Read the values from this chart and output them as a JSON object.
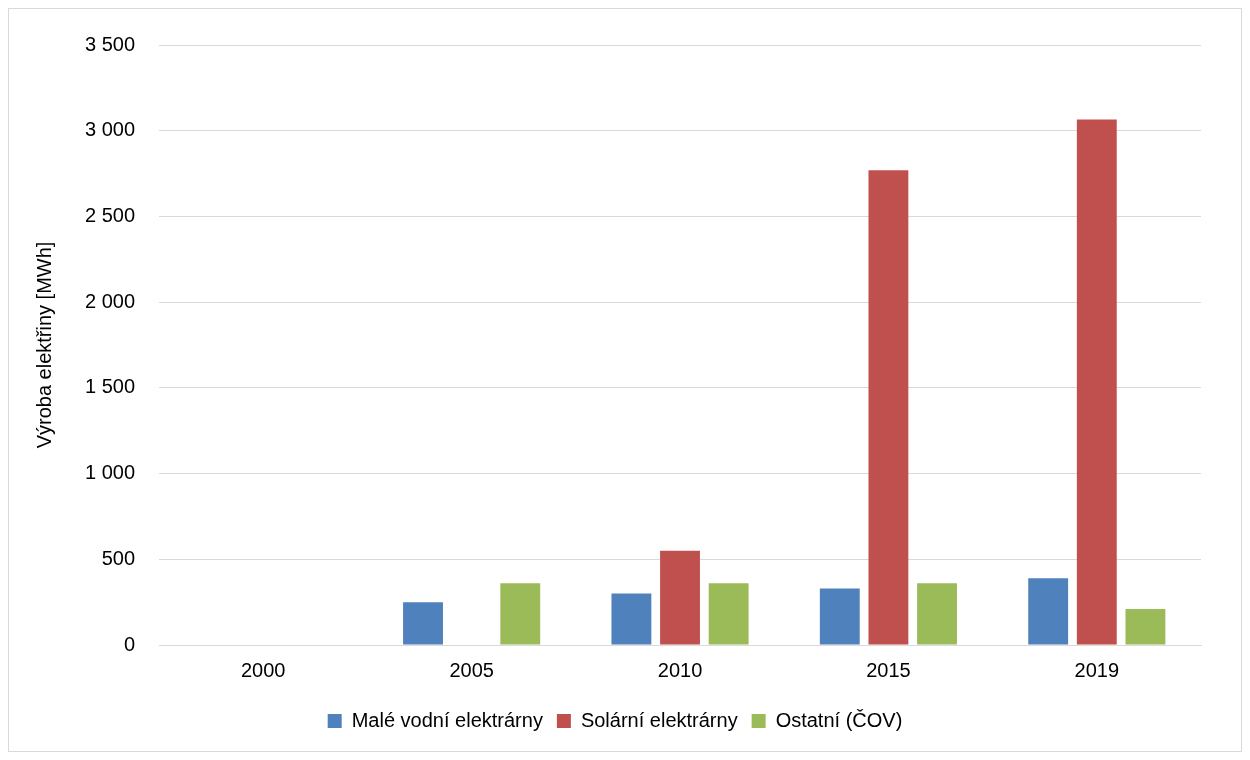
{
  "chart_data": {
    "type": "bar",
    "ylabel": "Výroba elektřiny [MWh]",
    "categories": [
      "2000",
      "2005",
      "2010",
      "2015",
      "2019"
    ],
    "series": [
      {
        "name": "Malé vodní elektrárny",
        "color": "#4f81bd",
        "values": [
          0,
          250,
          300,
          330,
          390
        ]
      },
      {
        "name": "Solární elektrárny",
        "color": "#c0504d",
        "values": [
          0,
          0,
          550,
          2770,
          3065
        ]
      },
      {
        "name": "Ostatní (ČOV)",
        "color": "#9bbb59",
        "values": [
          0,
          360,
          360,
          360,
          210
        ]
      }
    ],
    "ylim": [
      0,
      3500
    ],
    "yticks": [
      {
        "value": 0,
        "label": "0"
      },
      {
        "value": 500,
        "label": "500"
      },
      {
        "value": 1000,
        "label": "1 000"
      },
      {
        "value": 1500,
        "label": "1 500"
      },
      {
        "value": 2000,
        "label": "2 000"
      },
      {
        "value": 2500,
        "label": "2 500"
      },
      {
        "value": 3000,
        "label": "3 000"
      },
      {
        "value": 3500,
        "label": "3 500"
      }
    ],
    "grid": "y",
    "legend": "bottom"
  }
}
